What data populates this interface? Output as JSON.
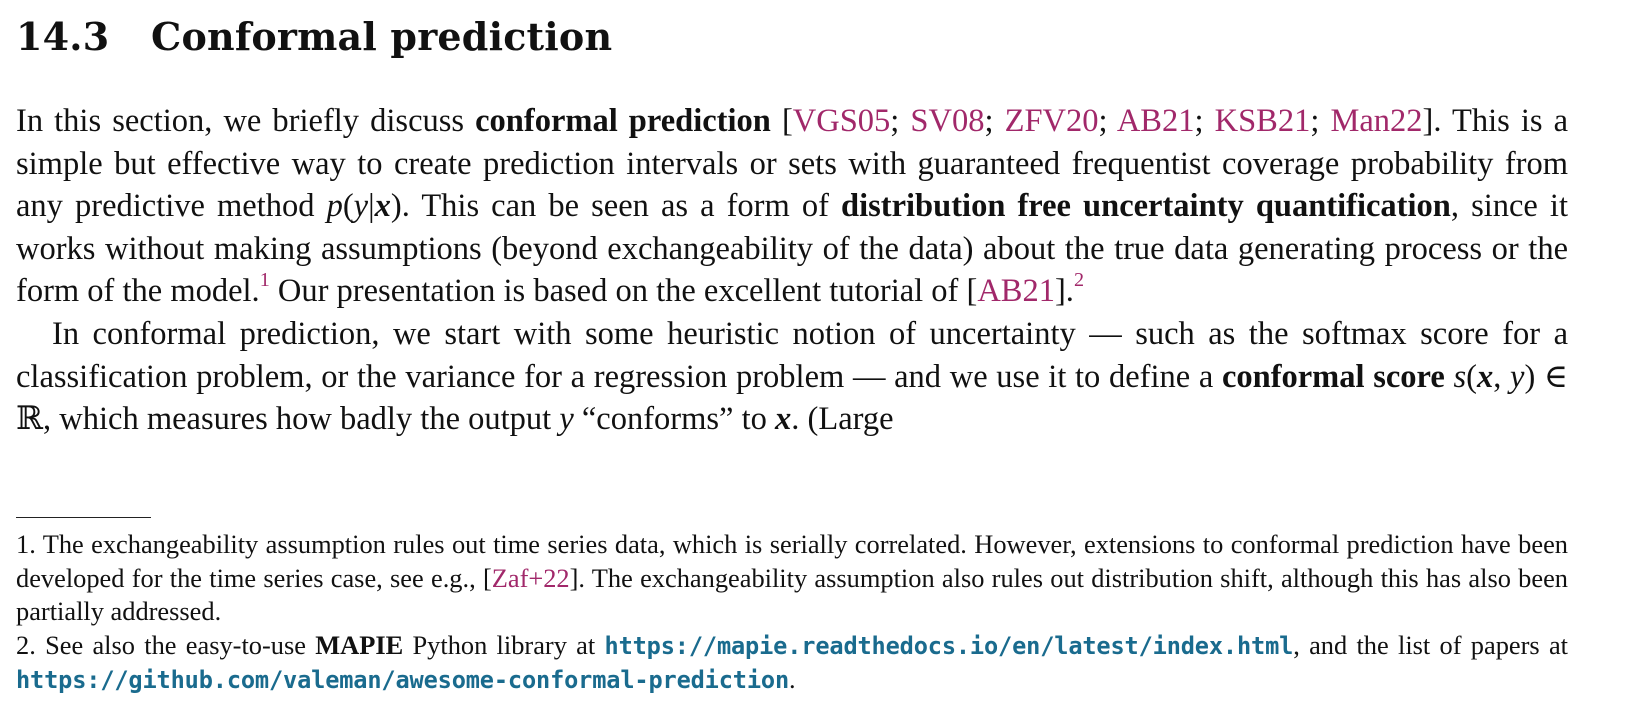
{
  "section": {
    "number": "14.3",
    "title": "Conformal prediction"
  },
  "paragraph1": {
    "t1": "In this section, we briefly discuss ",
    "b1": "conformal prediction",
    "t2": " [",
    "c1": "VGS05",
    "sep1": "; ",
    "c2": "SV08",
    "sep2": "; ",
    "c3": "ZFV20",
    "sep3": "; ",
    "c4": "AB21",
    "sep4": "; ",
    "c5": "KSB21",
    "sep5": "; ",
    "c6": "Man22",
    "t3": "]. This is a simple but effective way to create prediction intervals or sets with guaranteed frequentist coverage probability from any predictive method ",
    "m1a": "p",
    "m1b": "(",
    "m1c": "y",
    "m1d": "|",
    "m1e": "x",
    "m1f": ")",
    "t4": ". This can be seen as a form of ",
    "b2": "distribution free uncertainty quantification",
    "t5": ", since it works without making assumptions (beyond exchangeability of the data) about the true data generating process or the form of the model.",
    "fn1": "1",
    "t6": " Our presentation is based on the excellent tutorial of [",
    "c7": "AB21",
    "t7": "].",
    "fn2": "2"
  },
  "paragraph2": {
    "t1": "In conformal prediction, we start with some heuristic notion of uncertainty — such as the softmax score for a classification problem, or the variance for a regression problem — and we use it to define a ",
    "b1": "conformal score",
    "t2": " ",
    "m1": "s",
    "m2": "(",
    "m3": "x",
    "m4": ", ",
    "m5": "y",
    "m6": ") ∈ ℝ",
    "t3": ", which measures how badly the output ",
    "m7": "y",
    "t4": " “conforms” to ",
    "m8": "x",
    "t5": ". (Large"
  },
  "footnote1": {
    "label": "1.",
    "t1": " The exchangeability assumption rules out time series data, which is serially correlated. However, extensions to conformal prediction have been developed for the time series case, see e.g., [",
    "c1": "Zaf+22",
    "t2": "]. The exchangeability assumption also rules out distribution shift, although this has also been partially addressed."
  },
  "footnote2": {
    "label": "2.",
    "t1": " See also the easy-to-use ",
    "b1": "MAPIE",
    "t2": " Python library at ",
    "url1": "https://mapie.readthedocs.io/en/latest/index.html",
    "t3": ", and the list of papers at ",
    "url2": "https://github.com/valeman/awesome-conformal-prediction",
    "t4": "."
  }
}
